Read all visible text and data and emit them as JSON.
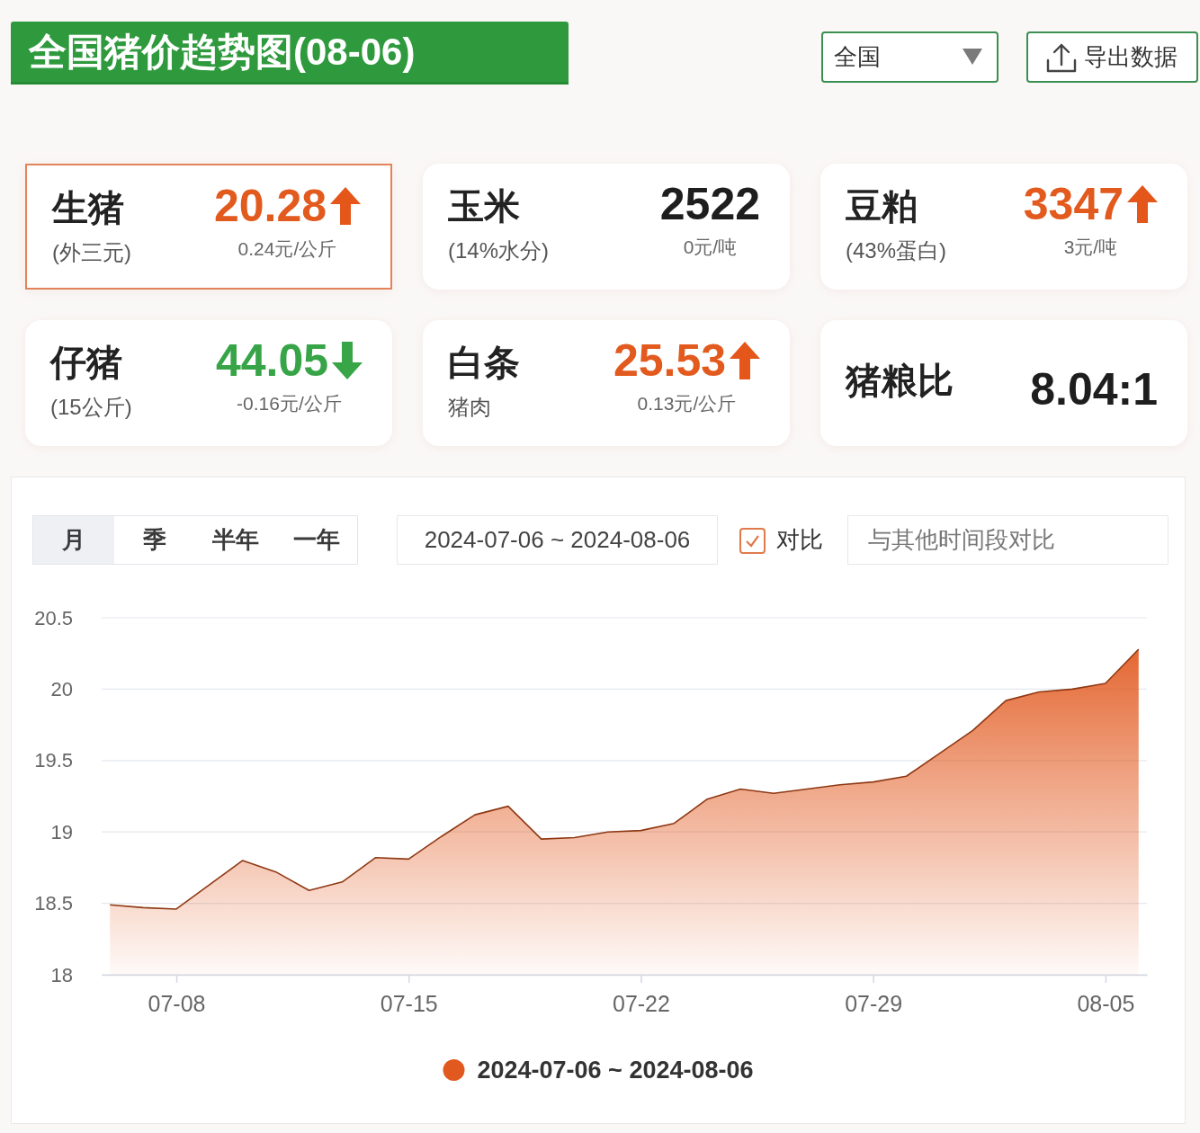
{
  "chart_data": [
    {
      "type": "other",
      "title": "全国猪价趋势图(08-06)",
      "annotations": [
        "全国",
        "导出数据"
      ]
    },
    {
      "type": "other",
      "title": "生猪",
      "subtitle": "(外三元)",
      "annotations": [
        "20.28",
        "0.24元/公斤"
      ]
    },
    {
      "type": "other",
      "title": "玉米",
      "subtitle": "(14%水分)",
      "annotations": [
        "2522",
        "0元/吨"
      ]
    },
    {
      "type": "other",
      "title": "豆粕",
      "subtitle": "(43%蛋白)",
      "annotations": [
        "3347",
        "3元/吨"
      ]
    },
    {
      "type": "other",
      "title": "仔猪",
      "subtitle": "(15公斤)",
      "annotations": [
        "44.05",
        "-0.16元/公斤"
      ]
    },
    {
      "type": "other",
      "title": "白条",
      "subtitle": "猪肉",
      "annotations": [
        "25.53",
        "0.13元/公斤"
      ]
    },
    {
      "type": "other",
      "title": "猪粮比",
      "annotations": [
        "8.04:1"
      ]
    },
    {
      "type": "area",
      "annotations": [
        "月",
        "季",
        "半年",
        "一年",
        "2024-07-06 ~ 2024-08-06",
        "对比",
        "与其他时间段对比"
      ],
      "x": [
        "2024-07-06",
        "2024-07-07",
        "2024-07-08",
        "2024-07-09",
        "2024-07-10",
        "2024-07-11",
        "2024-07-12",
        "2024-07-13",
        "2024-07-14",
        "2024-07-15",
        "2024-07-16",
        "2024-07-17",
        "2024-07-18",
        "2024-07-19",
        "2024-07-20",
        "2024-07-21",
        "2024-07-22",
        "2024-07-23",
        "2024-07-24",
        "2024-07-25",
        "2024-07-26",
        "2024-07-27",
        "2024-07-28",
        "2024-07-29",
        "2024-07-30",
        "2024-07-31",
        "2024-08-01",
        "2024-08-02",
        "2024-08-03",
        "2024-08-04",
        "2024-08-05",
        "2024-08-06"
      ],
      "series": [
        {
          "name": "2024-07-06 ~ 2024-08-06",
          "color": "#e2591f",
          "values": [
            18.49,
            18.47,
            18.46,
            18.63,
            18.8,
            18.72,
            18.59,
            18.65,
            18.82,
            18.81,
            18.97,
            19.12,
            19.18,
            18.95,
            18.96,
            19.0,
            19.01,
            19.06,
            19.23,
            19.3,
            19.27,
            19.3,
            19.33,
            19.35,
            19.39,
            19.55,
            19.71,
            19.92,
            19.98,
            20.0,
            20.04,
            20.28
          ]
        }
      ],
      "xlim": [
        "2024-07-05T18:00",
        "2024-08-06T06:00"
      ],
      "xticks": [
        {
          "value": "2024-07-08",
          "label": "07-08"
        },
        {
          "value": "2024-07-15",
          "label": "07-15"
        },
        {
          "value": "2024-07-22",
          "label": "07-22"
        },
        {
          "value": "2024-07-29",
          "label": "07-29"
        },
        {
          "value": "2024-08-05",
          "label": "08-05"
        }
      ],
      "ylim": [
        18,
        20.5
      ],
      "yticks": [
        18,
        18.5,
        19,
        19.5,
        20,
        20.5
      ],
      "grid": "y",
      "legend": "bottom"
    }
  ]
}
